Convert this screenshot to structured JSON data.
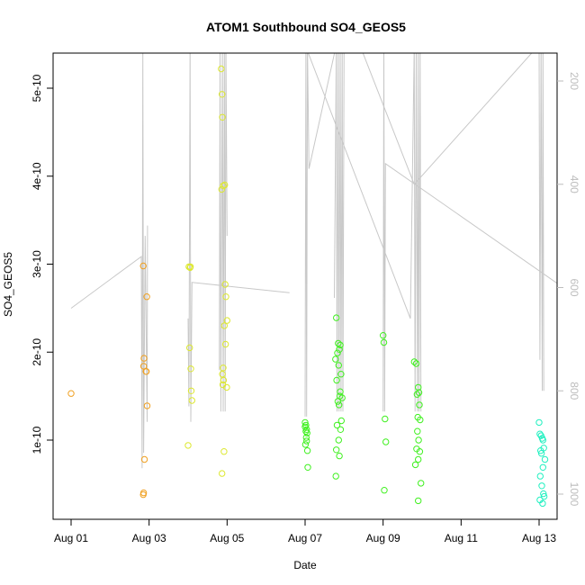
{
  "chart_data": {
    "type": "scatter",
    "title": "ATOM1 Southbound SO4_GEOS5",
    "xlabel": "Date",
    "ylabel": "SO4_GEOS5",
    "x_ticks": [
      "Aug 01",
      "Aug 03",
      "Aug 05",
      "Aug 07",
      "Aug 09",
      "Aug 11",
      "Aug 13"
    ],
    "y_ticks": [
      "1e-10",
      "2e-10",
      "3e-10",
      "4e-10",
      "5e-10"
    ],
    "y_right_ticks": [
      "200",
      "400",
      "600",
      "800",
      "1000"
    ],
    "xlim": [
      "2016-08-01",
      "2016-08-13"
    ],
    "ylim": [
      2e-11,
      5.4e-10
    ],
    "y_right_lim": [
      130,
      1040
    ],
    "y_right_inverted": true,
    "grid": false,
    "colors": {
      "points_start": "#f0a020",
      "points_mid": "#dde830",
      "points_green": "#40f020",
      "points_end": "#20f0c0",
      "pressure_line": "#c8c8c8"
    },
    "series": [
      {
        "x": [
          0.0,
          1.85,
          1.87,
          1.86,
          1.92,
          1.94,
          1.95,
          1.88,
          1.93,
          1.85,
          1.86,
          3.02,
          3.05,
          3.07,
          3.08,
          3.0,
          3.04,
          3.1,
          3.06,
          3.85,
          3.87,
          3.88,
          3.9,
          3.86,
          3.95,
          3.97,
          4.0,
          3.93,
          3.96,
          3.9,
          3.88,
          3.91,
          3.89,
          3.99,
          3.92,
          3.87,
          3.94,
          6.0,
          6.02,
          6.04,
          6.05,
          6.03,
          6.01,
          6.06,
          6.07,
          6.02,
          6.04,
          6.0,
          6.8,
          6.85,
          6.9,
          6.88,
          6.83,
          6.78,
          6.86,
          6.92,
          6.81,
          6.9,
          6.89,
          6.95,
          6.84,
          6.87,
          6.93,
          6.82,
          6.91,
          6.86,
          6.8,
          6.88,
          6.79,
          8.0,
          8.02,
          8.05,
          8.07,
          8.03,
          8.8,
          8.85,
          8.9,
          8.92,
          8.87,
          8.93,
          8.89,
          8.95,
          8.88,
          8.91,
          8.86,
          8.94,
          8.9,
          8.83,
          8.97,
          8.9,
          12.0,
          12.02,
          12.05,
          12.08,
          12.1,
          12.12,
          12.04,
          12.06,
          12.15,
          12.1,
          12.03,
          12.07,
          12.11,
          12.13,
          12.02,
          12.09,
          12.95,
          12.97,
          13.0,
          13.02,
          12.98,
          13.01,
          12.96
        ],
        "y": [
          1.53e-10,
          2.98e-10,
          1.93e-10,
          1.84e-10,
          1.78e-10,
          2.63e-10,
          1.39e-10,
          7.8e-11,
          1.78e-10,
          3.8e-11,
          4e-11,
          2.97e-10,
          2.96e-10,
          1.81e-10,
          1.56e-10,
          9.4e-11,
          2.05e-10,
          1.45e-10,
          2.97e-10,
          5.22e-10,
          4.93e-10,
          4.67e-10,
          3.89e-10,
          3.85e-10,
          2.77e-10,
          2.63e-10,
          2.36e-10,
          2.3e-10,
          2.09e-10,
          1.82e-10,
          1.75e-10,
          1.68e-10,
          1.63e-10,
          1.6e-10,
          8.7e-11,
          6.2e-11,
          3.9e-10,
          1.2e-10,
          1.17e-10,
          1.12e-10,
          1.08e-10,
          1.03e-10,
          9.5e-11,
          8.8e-11,
          6.9e-11,
          1.1e-10,
          9.9e-11,
          1.15e-10,
          2.39e-10,
          2.1e-10,
          2.08e-10,
          2.03e-10,
          1.99e-10,
          1.92e-10,
          1.85e-10,
          1.75e-10,
          1.68e-10,
          1.55e-10,
          1.5e-10,
          1.48e-10,
          1.44e-10,
          1.4e-10,
          1.22e-10,
          1.17e-10,
          1.12e-10,
          1e-10,
          8.9e-11,
          8.2e-11,
          5.9e-11,
          2.19e-10,
          2.11e-10,
          1.24e-10,
          9.8e-11,
          4.3e-11,
          1.89e-10,
          1.87e-10,
          1.6e-10,
          1.54e-10,
          1.52e-10,
          1.4e-10,
          1.26e-10,
          1.23e-10,
          1.1e-10,
          1e-10,
          9e-11,
          8.7e-11,
          7.8e-11,
          7.2e-11,
          5.1e-11,
          3.1e-11,
          1.2e-10,
          1.07e-10,
          1.05e-10,
          1.02e-10,
          1e-10,
          9.1e-11,
          8.8e-11,
          8.5e-11,
          7.8e-11,
          6.9e-11,
          5.9e-11,
          4.8e-11,
          3.9e-11,
          3.6e-11,
          3.2e-11,
          2.8e-11,
          1.27e-10,
          1.04e-10,
          8.6e-11,
          7.8e-11,
          7.7e-11,
          5.8e-11,
          4.8e-11
        ]
      },
      {
        "segments": [
          [
            [
              0.0,
              640
            ],
            [
              1.8,
              540
            ],
            [
              1.82,
              950
            ],
            [
              1.84,
              140
            ],
            [
              1.86,
              920
            ],
            [
              1.9,
              500
            ],
            [
              1.95,
              860
            ],
            [
              1.96,
              480
            ]
          ],
          [
            [
              3.0,
              660
            ],
            [
              3.02,
              830
            ],
            [
              3.05,
              130
            ],
            [
              3.07,
              860
            ],
            [
              3.1,
              590
            ],
            [
              5.6,
              610
            ]
          ],
          [
            [
              3.8,
              760
            ],
            [
              3.82,
              130
            ],
            [
              3.84,
              840
            ],
            [
              3.88,
              130
            ],
            [
              3.9,
              840
            ],
            [
              3.93,
              130
            ],
            [
              3.95,
              840
            ],
            [
              3.97,
              130
            ],
            [
              4.0,
              500
            ]
          ],
          [
            [
              6.0,
              850
            ],
            [
              6.02,
              130
            ],
            [
              6.04,
              850
            ],
            [
              6.06,
              130
            ],
            [
              6.1,
              370
            ],
            [
              6.8,
              130
            ]
          ],
          [
            [
              6.75,
              620
            ],
            [
              6.8,
              130
            ],
            [
              6.82,
              840
            ],
            [
              6.85,
              130
            ],
            [
              6.87,
              840
            ],
            [
              6.9,
              130
            ],
            [
              6.92,
              840
            ],
            [
              6.95,
              130
            ],
            [
              6.97,
              840
            ],
            [
              7.0,
              130
            ]
          ],
          [
            [
              6.0,
              130
            ],
            [
              8.7,
              660
            ],
            [
              8.8,
              130
            ],
            [
              8.82,
              840
            ],
            [
              8.85,
              130
            ],
            [
              8.88,
              840
            ],
            [
              8.9,
              130
            ],
            [
              8.92,
              840
            ],
            [
              8.95,
              130
            ],
            [
              8.97,
              840
            ]
          ],
          [
            [
              8.0,
              840
            ],
            [
              8.02,
              130
            ],
            [
              8.04,
              840
            ],
            [
              8.06,
              360
            ],
            [
              13.0,
              620
            ]
          ],
          [
            [
              7.4,
              130
            ],
            [
              8.8,
              400
            ],
            [
              12.0,
              130
            ],
            [
              12.02,
              740
            ],
            [
              12.05,
              130
            ],
            [
              12.08,
              800
            ],
            [
              12.1,
              130
            ],
            [
              12.12,
              800
            ]
          ],
          [
            [
              12.5,
              130
            ],
            [
              13.0,
              380
            ],
            [
              13.0,
              720
            ],
            [
              13.02,
              130
            ]
          ]
        ]
      }
    ]
  }
}
